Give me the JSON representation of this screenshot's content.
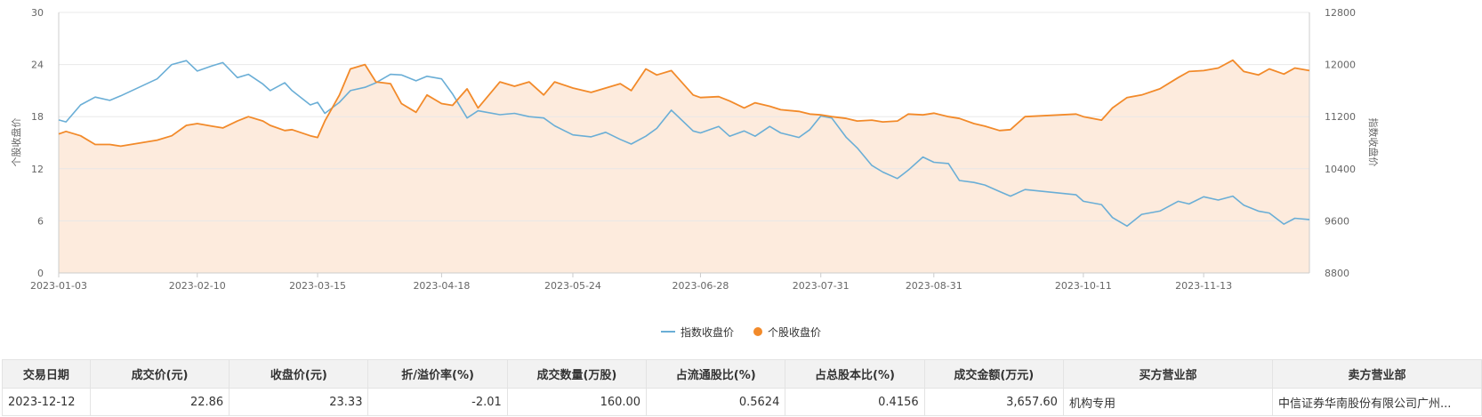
{
  "chart_data": {
    "type": "line",
    "left_axis": {
      "label": "个股收盘价",
      "min": 0,
      "max": 30,
      "ticks": [
        0,
        6,
        12,
        18,
        24,
        30
      ]
    },
    "right_axis": {
      "label": "指数收盘价",
      "min": 8800,
      "max": 12800,
      "ticks": [
        8800,
        9600,
        10400,
        11200,
        12000,
        12800
      ]
    },
    "x_axis": {
      "start": "2023-01-03",
      "end": "2023-12-12",
      "tick_labels": [
        "2023-01-03",
        "2023-02-10",
        "2023-03-15",
        "2023-04-18",
        "2023-05-24",
        "2023-06-28",
        "2023-07-31",
        "2023-08-31",
        "2023-10-11",
        "2023-11-13"
      ]
    },
    "grid": true,
    "legend_position": "bottom-center",
    "series": [
      {
        "name": "指数收盘价",
        "axis": "right",
        "color": "#6aaed6",
        "points": [
          [
            "2023-01-03",
            11150
          ],
          [
            "2023-01-05",
            11120
          ],
          [
            "2023-01-09",
            11380
          ],
          [
            "2023-01-13",
            11500
          ],
          [
            "2023-01-17",
            11450
          ],
          [
            "2023-01-20",
            11520
          ],
          [
            "2023-01-30",
            11780
          ],
          [
            "2023-02-03",
            12000
          ],
          [
            "2023-02-07",
            12060
          ],
          [
            "2023-02-10",
            11900
          ],
          [
            "2023-02-14",
            11980
          ],
          [
            "2023-02-17",
            12030
          ],
          [
            "2023-02-21",
            11800
          ],
          [
            "2023-02-24",
            11850
          ],
          [
            "2023-02-28",
            11700
          ],
          [
            "2023-03-02",
            11600
          ],
          [
            "2023-03-06",
            11720
          ],
          [
            "2023-03-08",
            11600
          ],
          [
            "2023-03-13",
            11380
          ],
          [
            "2023-03-15",
            11420
          ],
          [
            "2023-03-17",
            11250
          ],
          [
            "2023-03-21",
            11420
          ],
          [
            "2023-03-24",
            11600
          ],
          [
            "2023-03-28",
            11650
          ],
          [
            "2023-03-31",
            11720
          ],
          [
            "2023-04-04",
            11850
          ],
          [
            "2023-04-07",
            11840
          ],
          [
            "2023-04-11",
            11750
          ],
          [
            "2023-04-14",
            11820
          ],
          [
            "2023-04-18",
            11780
          ],
          [
            "2023-04-21",
            11550
          ],
          [
            "2023-04-25",
            11180
          ],
          [
            "2023-04-28",
            11290
          ],
          [
            "2023-05-04",
            11230
          ],
          [
            "2023-05-08",
            11250
          ],
          [
            "2023-05-12",
            11200
          ],
          [
            "2023-05-16",
            11180
          ],
          [
            "2023-05-19",
            11060
          ],
          [
            "2023-05-24",
            10920
          ],
          [
            "2023-05-29",
            10890
          ],
          [
            "2023-06-02",
            10960
          ],
          [
            "2023-06-06",
            10850
          ],
          [
            "2023-06-09",
            10780
          ],
          [
            "2023-06-13",
            10900
          ],
          [
            "2023-06-16",
            11020
          ],
          [
            "2023-06-20",
            11300
          ],
          [
            "2023-06-26",
            10980
          ],
          [
            "2023-06-28",
            10950
          ],
          [
            "2023-07-03",
            11050
          ],
          [
            "2023-07-06",
            10900
          ],
          [
            "2023-07-10",
            10980
          ],
          [
            "2023-07-13",
            10900
          ],
          [
            "2023-07-17",
            11050
          ],
          [
            "2023-07-20",
            10950
          ],
          [
            "2023-07-25",
            10880
          ],
          [
            "2023-07-28",
            11000
          ],
          [
            "2023-07-31",
            11210
          ],
          [
            "2023-08-03",
            11180
          ],
          [
            "2023-08-07",
            10880
          ],
          [
            "2023-08-10",
            10720
          ],
          [
            "2023-08-14",
            10450
          ],
          [
            "2023-08-17",
            10350
          ],
          [
            "2023-08-21",
            10250
          ],
          [
            "2023-08-24",
            10380
          ],
          [
            "2023-08-28",
            10580
          ],
          [
            "2023-08-31",
            10500
          ],
          [
            "2023-09-04",
            10480
          ],
          [
            "2023-09-07",
            10220
          ],
          [
            "2023-09-11",
            10190
          ],
          [
            "2023-09-14",
            10150
          ],
          [
            "2023-09-18",
            10050
          ],
          [
            "2023-09-21",
            9980
          ],
          [
            "2023-09-25",
            10080
          ],
          [
            "2023-10-09",
            10000
          ],
          [
            "2023-10-11",
            9900
          ],
          [
            "2023-10-16",
            9850
          ],
          [
            "2023-10-19",
            9650
          ],
          [
            "2023-10-23",
            9520
          ],
          [
            "2023-10-27",
            9700
          ],
          [
            "2023-11-01",
            9750
          ],
          [
            "2023-11-06",
            9900
          ],
          [
            "2023-11-09",
            9860
          ],
          [
            "2023-11-13",
            9970
          ],
          [
            "2023-11-17",
            9920
          ],
          [
            "2023-11-21",
            9980
          ],
          [
            "2023-11-24",
            9840
          ],
          [
            "2023-11-28",
            9750
          ],
          [
            "2023-12-01",
            9720
          ],
          [
            "2023-12-05",
            9550
          ],
          [
            "2023-12-08",
            9640
          ],
          [
            "2023-12-12",
            9620
          ]
        ]
      },
      {
        "name": "个股收盘价",
        "axis": "left",
        "color": "#f28a2a",
        "points": [
          [
            "2023-01-03",
            16.0
          ],
          [
            "2023-01-05",
            16.3
          ],
          [
            "2023-01-09",
            15.8
          ],
          [
            "2023-01-13",
            14.8
          ],
          [
            "2023-01-17",
            14.8
          ],
          [
            "2023-01-20",
            14.6
          ],
          [
            "2023-01-30",
            15.3
          ],
          [
            "2023-02-03",
            15.8
          ],
          [
            "2023-02-07",
            17.0
          ],
          [
            "2023-02-10",
            17.2
          ],
          [
            "2023-02-14",
            16.9
          ],
          [
            "2023-02-17",
            16.7
          ],
          [
            "2023-02-21",
            17.5
          ],
          [
            "2023-02-24",
            18.0
          ],
          [
            "2023-02-28",
            17.5
          ],
          [
            "2023-03-02",
            17.0
          ],
          [
            "2023-03-06",
            16.4
          ],
          [
            "2023-03-08",
            16.5
          ],
          [
            "2023-03-13",
            15.8
          ],
          [
            "2023-03-15",
            15.6
          ],
          [
            "2023-03-17",
            17.5
          ],
          [
            "2023-03-21",
            20.5
          ],
          [
            "2023-03-24",
            23.5
          ],
          [
            "2023-03-28",
            24.0
          ],
          [
            "2023-03-31",
            22.0
          ],
          [
            "2023-04-04",
            21.8
          ],
          [
            "2023-04-07",
            19.5
          ],
          [
            "2023-04-11",
            18.5
          ],
          [
            "2023-04-14",
            20.5
          ],
          [
            "2023-04-18",
            19.5
          ],
          [
            "2023-04-21",
            19.3
          ],
          [
            "2023-04-25",
            21.2
          ],
          [
            "2023-04-28",
            19.0
          ],
          [
            "2023-05-04",
            22.0
          ],
          [
            "2023-05-08",
            21.5
          ],
          [
            "2023-05-12",
            22.0
          ],
          [
            "2023-05-16",
            20.5
          ],
          [
            "2023-05-19",
            22.0
          ],
          [
            "2023-05-24",
            21.3
          ],
          [
            "2023-05-29",
            20.8
          ],
          [
            "2023-06-02",
            21.3
          ],
          [
            "2023-06-06",
            21.8
          ],
          [
            "2023-06-09",
            21.0
          ],
          [
            "2023-06-13",
            23.5
          ],
          [
            "2023-06-16",
            22.8
          ],
          [
            "2023-06-20",
            23.3
          ],
          [
            "2023-06-26",
            20.5
          ],
          [
            "2023-06-28",
            20.2
          ],
          [
            "2023-07-03",
            20.3
          ],
          [
            "2023-07-06",
            19.8
          ],
          [
            "2023-07-10",
            19.0
          ],
          [
            "2023-07-13",
            19.6
          ],
          [
            "2023-07-17",
            19.2
          ],
          [
            "2023-07-20",
            18.8
          ],
          [
            "2023-07-25",
            18.6
          ],
          [
            "2023-07-28",
            18.3
          ],
          [
            "2023-07-31",
            18.2
          ],
          [
            "2023-08-03",
            18.0
          ],
          [
            "2023-08-07",
            17.8
          ],
          [
            "2023-08-10",
            17.5
          ],
          [
            "2023-08-14",
            17.6
          ],
          [
            "2023-08-17",
            17.4
          ],
          [
            "2023-08-21",
            17.5
          ],
          [
            "2023-08-24",
            18.3
          ],
          [
            "2023-08-28",
            18.2
          ],
          [
            "2023-08-31",
            18.4
          ],
          [
            "2023-09-04",
            18.0
          ],
          [
            "2023-09-07",
            17.8
          ],
          [
            "2023-09-11",
            17.2
          ],
          [
            "2023-09-14",
            16.9
          ],
          [
            "2023-09-18",
            16.4
          ],
          [
            "2023-09-21",
            16.5
          ],
          [
            "2023-09-25",
            18.0
          ],
          [
            "2023-10-09",
            18.3
          ],
          [
            "2023-10-11",
            18.0
          ],
          [
            "2023-10-16",
            17.6
          ],
          [
            "2023-10-19",
            19.0
          ],
          [
            "2023-10-23",
            20.2
          ],
          [
            "2023-10-27",
            20.5
          ],
          [
            "2023-11-01",
            21.2
          ],
          [
            "2023-11-06",
            22.5
          ],
          [
            "2023-11-09",
            23.2
          ],
          [
            "2023-11-13",
            23.3
          ],
          [
            "2023-11-17",
            23.6
          ],
          [
            "2023-11-21",
            24.5
          ],
          [
            "2023-11-24",
            23.2
          ],
          [
            "2023-11-28",
            22.8
          ],
          [
            "2023-12-01",
            23.5
          ],
          [
            "2023-12-05",
            22.9
          ],
          [
            "2023-12-08",
            23.6
          ],
          [
            "2023-12-12",
            23.3
          ]
        ]
      }
    ],
    "colors": {
      "area_fill": "#fdebdd",
      "grid": "#e8e8e8",
      "axis": "#cccccc",
      "tick_text": "#666666"
    }
  },
  "legend": {
    "items": [
      {
        "label": "指数收盘价",
        "color": "#6aaed6"
      },
      {
        "label": "个股收盘价",
        "color": "#f28a2a"
      }
    ]
  },
  "table": {
    "headers": [
      "交易日期",
      "成交价(元)",
      "收盘价(元)",
      "折/溢价率(%)",
      "成交数量(万股)",
      "占流通股比(%)",
      "占总股本比(%)",
      "成交金额(万元)",
      "买方营业部",
      "卖方营业部"
    ],
    "rows": [
      {
        "trade_date": "2023-12-12",
        "deal_price": "22.86",
        "close_price": "23.33",
        "premium_rate": "-2.01",
        "volume": "160.00",
        "float_ratio": "0.5624",
        "total_ratio": "0.4156",
        "amount": "3,657.60",
        "buyer": "机构专用",
        "seller": "中信证券华南股份有限公司广州..."
      }
    ]
  }
}
